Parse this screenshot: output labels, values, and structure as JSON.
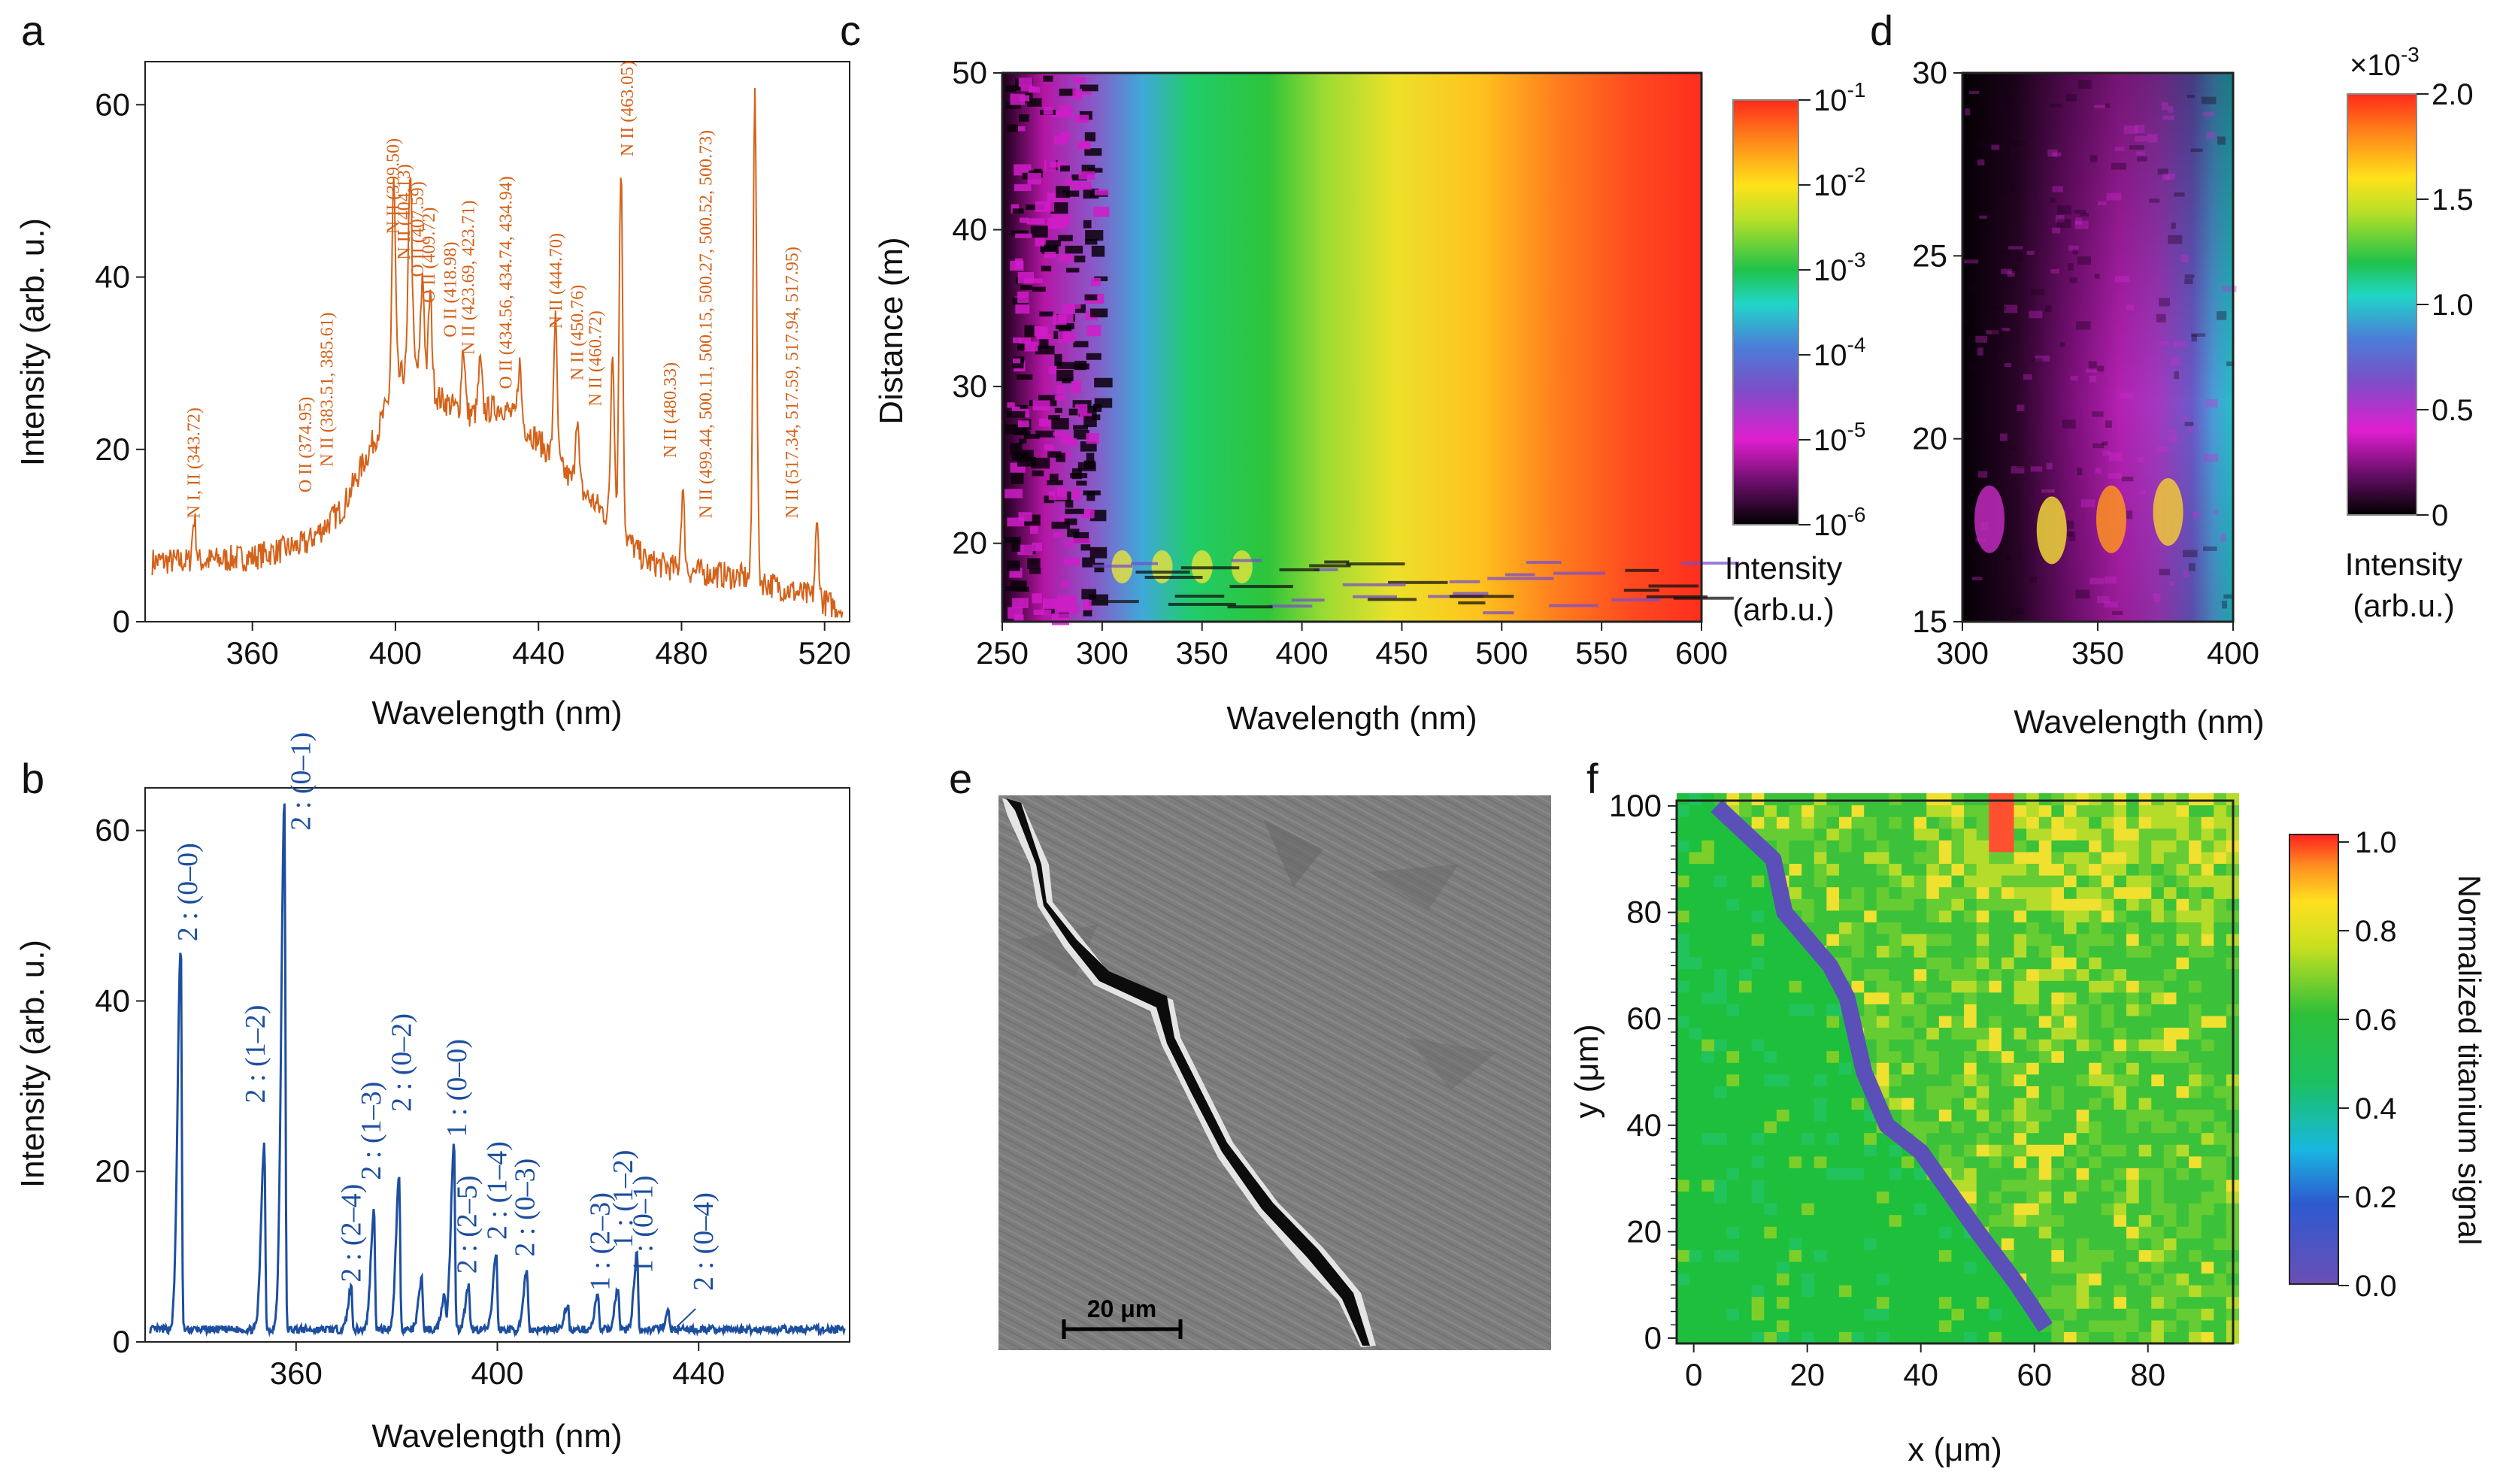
{
  "panels": {
    "a": "a",
    "b": "b",
    "c": "c",
    "d": "d",
    "e": "e",
    "f": "f"
  },
  "colors": {
    "spectrum_a": "#d4621a",
    "spectrum_b": "#1d4fa0",
    "crack": "#5b4fb8"
  },
  "chart_data": [
    {
      "id": "a",
      "type": "line",
      "xlabel": "Wavelength (nm)",
      "ylabel": "Intensity (arb. u.)",
      "xlim": [
        330,
        527
      ],
      "ylim": [
        0,
        65
      ],
      "xticks": [
        360,
        400,
        440,
        480,
        520
      ],
      "yticks": [
        0,
        20,
        40,
        60
      ],
      "baseline": [
        [
          330,
          7
        ],
        [
          345,
          7
        ],
        [
          360,
          7.5
        ],
        [
          375,
          9
        ],
        [
          385,
          13
        ],
        [
          395,
          22
        ],
        [
          400,
          28
        ],
        [
          405,
          30
        ],
        [
          412,
          26
        ],
        [
          420,
          24
        ],
        [
          430,
          25
        ],
        [
          440,
          21
        ],
        [
          450,
          16
        ],
        [
          455,
          14
        ],
        [
          460,
          12
        ],
        [
          470,
          7
        ],
        [
          480,
          6
        ],
        [
          500,
          5
        ],
        [
          515,
          3
        ],
        [
          525,
          1.5
        ]
      ],
      "peaks": [
        [
          343.72,
          12
        ],
        [
          374.95,
          9
        ],
        [
          385.6,
          13
        ],
        [
          399.5,
          51
        ],
        [
          404.13,
          53
        ],
        [
          407.59,
          40
        ],
        [
          409.72,
          38
        ],
        [
          418.98,
          32
        ],
        [
          423.7,
          30
        ],
        [
          434.7,
          30
        ],
        [
          444.7,
          35
        ],
        [
          450.76,
          24
        ],
        [
          460.72,
          32
        ],
        [
          463.05,
          53
        ],
        [
          480.33,
          15
        ],
        [
          500.5,
          63
        ],
        [
          517.9,
          11
        ]
      ],
      "annotations": [
        {
          "text": "N I, II (343.72)",
          "x": 343.72,
          "y": 12
        },
        {
          "text": "O II (374.95)",
          "x": 374.95,
          "y": 15
        },
        {
          "text": "N II (383.51, 385.61)",
          "x": 381,
          "y": 18
        },
        {
          "text": "N II (399.50)",
          "x": 399.5,
          "y": 45
        },
        {
          "text": "N II (404.13)",
          "x": 402.5,
          "y": 42
        },
        {
          "text": "O II (407.59)",
          "x": 406.3,
          "y": 40
        },
        {
          "text": "O II (409.72)",
          "x": 409.5,
          "y": 37
        },
        {
          "text": "O II (418.98)",
          "x": 415.5,
          "y": 33
        },
        {
          "text": "N II (423.69, 423.71)",
          "x": 420.5,
          "y": 31
        },
        {
          "text": "O II (434.56, 434.74, 434.94)",
          "x": 431,
          "y": 27
        },
        {
          "text": "N II (444.70)",
          "x": 445,
          "y": 34
        },
        {
          "text": "N II (450.76)",
          "x": 451,
          "y": 28
        },
        {
          "text": "N II (460.72)",
          "x": 456,
          "y": 25
        },
        {
          "text": "N II (463.05)",
          "x": 465,
          "y": 54
        },
        {
          "text": "N II (480.33)",
          "x": 477,
          "y": 19
        },
        {
          "text": "N II (499.44, 500.11, 500.15, 500.27, 500.52, 500.73)",
          "x": 487,
          "y": 12
        },
        {
          "text": "N II (517.34, 517.59, 517.94, 517.95)",
          "x": 511,
          "y": 12
        }
      ]
    },
    {
      "id": "b",
      "type": "line",
      "xlabel": "Wavelength (nm)",
      "ylabel": "Intensity (arb. u.)",
      "xlim": [
        330,
        470
      ],
      "ylim": [
        0,
        65
      ],
      "xticks": [
        360,
        400,
        440
      ],
      "yticks": [
        0,
        20,
        40,
        60
      ],
      "peaks": [
        [
          337.1,
          45
        ],
        [
          353.7,
          22
        ],
        [
          357.7,
          62
        ],
        [
          371,
          5
        ],
        [
          375.5,
          14
        ],
        [
          380.5,
          18
        ],
        [
          385,
          6
        ],
        [
          389.5,
          4
        ],
        [
          391.4,
          22
        ],
        [
          394.3,
          5
        ],
        [
          399.8,
          9
        ],
        [
          405.9,
          7
        ],
        [
          414,
          3
        ],
        [
          420,
          4
        ],
        [
          424,
          5
        ],
        [
          427.8,
          9
        ],
        [
          434,
          2
        ]
      ],
      "annotations": [
        {
          "text": "2 : (0–0)",
          "x": 338.5,
          "y": 47
        },
        {
          "text": "2 : (1–2)",
          "x": 352,
          "y": 28
        },
        {
          "text": "2 : (0–1)",
          "x": 361,
          "y": 60
        },
        {
          "text": "2 : (2–4)",
          "x": 371,
          "y": 7
        },
        {
          "text": "2 : (1–3)",
          "x": 375,
          "y": 19
        },
        {
          "text": "2 : (0–2)",
          "x": 381,
          "y": 27
        },
        {
          "text": "1 : (0–0)",
          "x": 392,
          "y": 24
        },
        {
          "text": "2 : (2–5)",
          "x": 394,
          "y": 8
        },
        {
          "text": "2 : (1–4)",
          "x": 400,
          "y": 12
        },
        {
          "text": "2 : (0–3)",
          "x": 405.5,
          "y": 10
        },
        {
          "text": "1 : (2–3)",
          "x": 420.5,
          "y": 6
        },
        {
          "text": "1 : (1–2)",
          "x": 425,
          "y": 11
        },
        {
          "text": "1 : (0–1)",
          "x": 429,
          "y": 8
        },
        {
          "text": "2 : (0–4)",
          "x": 441,
          "y": 6
        }
      ]
    },
    {
      "id": "c",
      "type": "heatmap",
      "xlabel": "Wavelength (nm)",
      "ylabel": "Distance (m)",
      "xlim": [
        250,
        600
      ],
      "ylim": [
        15,
        50
      ],
      "xticks": [
        250,
        300,
        350,
        400,
        450,
        500,
        550,
        600
      ],
      "yticks": [
        20,
        30,
        40,
        50
      ],
      "colorbar": {
        "label_line1": "Intensity",
        "label_line2": "(arb.u.)",
        "ticks": [
          {
            "base": "10",
            "exp": "-1",
            "v": 1
          },
          {
            "base": "10",
            "exp": "-2",
            "v": 0.8
          },
          {
            "base": "10",
            "exp": "-3",
            "v": 0.6
          },
          {
            "base": "10",
            "exp": "-4",
            "v": 0.4
          },
          {
            "base": "10",
            "exp": "-5",
            "v": 0.2
          },
          {
            "base": "10",
            "exp": "-6",
            "v": 0
          }
        ]
      }
    },
    {
      "id": "d",
      "type": "heatmap",
      "xlabel": "Wavelength (nm)",
      "ylabel": "",
      "xlim": [
        300,
        400
      ],
      "ylim": [
        15,
        30
      ],
      "xticks": [
        300,
        350,
        400
      ],
      "yticks": [
        15,
        20,
        25,
        30
      ],
      "colorbar": {
        "multiplier_prefix": "×10",
        "multiplier_exp": "-3",
        "label_line1": "Intensity",
        "label_line2": "(arb.u.)",
        "ticks": [
          {
            "label": "2.0",
            "v": 1
          },
          {
            "label": "1.5",
            "v": 0.75
          },
          {
            "label": "1.0",
            "v": 0.5
          },
          {
            "label": "0.5",
            "v": 0.25
          },
          {
            "label": "0",
            "v": 0
          }
        ]
      }
    },
    {
      "id": "f",
      "type": "heatmap",
      "xlabel": "x (μm)",
      "ylabel": "y (μm)",
      "xlim": [
        -3,
        95
      ],
      "ylim": [
        -1,
        101
      ],
      "xticks": [
        0,
        20,
        40,
        60,
        80
      ],
      "yticks": [
        0,
        20,
        40,
        60,
        80,
        100
      ],
      "colorbar": {
        "label": "Normalized titanium signal",
        "ticks": [
          {
            "label": "1.0",
            "v": 1
          },
          {
            "label": "0.8",
            "v": 0.8
          },
          {
            "label": "0.6",
            "v": 0.6
          },
          {
            "label": "0.4",
            "v": 0.4
          },
          {
            "label": "0.2",
            "v": 0.2
          },
          {
            "label": "0.0",
            "v": 0
          }
        ]
      }
    }
  ],
  "sem_image": {
    "scale_bar_label": "20 μm"
  }
}
